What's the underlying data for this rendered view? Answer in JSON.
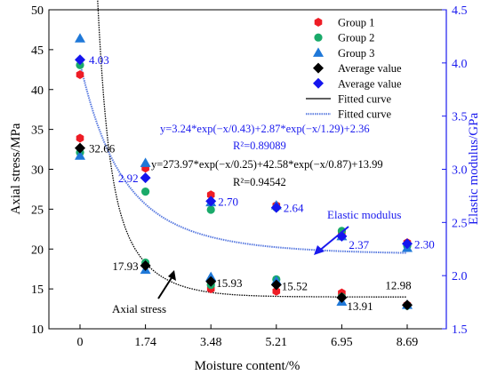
{
  "chart_data": {
    "type": "scatter",
    "xlabel": "Moisture content/%",
    "ylabel_left": "Axial stress/MPa",
    "ylabel_right": "Elastic modulus/GPa",
    "categories": [
      "0",
      "1.74",
      "3.48",
      "5.21",
      "6.95",
      "8.69"
    ],
    "x": [
      0,
      1.74,
      3.48,
      5.21,
      6.95,
      8.69
    ],
    "ylim_left": [
      10,
      50
    ],
    "ylim_right": [
      1.5,
      4.5
    ],
    "yticks_left": [
      "10",
      "15",
      "20",
      "25",
      "30",
      "35",
      "40",
      "45",
      "50"
    ],
    "yticks_right": [
      "1.5",
      "2.0",
      "2.5",
      "3.0",
      "3.5",
      "4.0",
      "4.5"
    ],
    "legend_placement": "top-right",
    "colors": {
      "group1": "#ee1c25",
      "group2": "#1aaa6a",
      "group3": "#1f78d8",
      "average_stress": "#000000",
      "average_modulus": "#1515ee",
      "fit_stress": "#000000",
      "fit_modulus": "#5a7be0",
      "right_axis": "#1a1aee"
    },
    "legend": [
      {
        "label": "Group 1",
        "marker": "hexagon",
        "color": "#ee1c25"
      },
      {
        "label": "Group 2",
        "marker": "circle",
        "color": "#1aaa6a"
      },
      {
        "label": "Group 3",
        "marker": "triangle",
        "color": "#1f78d8"
      },
      {
        "label": "Average value",
        "marker": "diamond",
        "color": "#000000"
      },
      {
        "label": "Average value",
        "marker": "diamond",
        "color": "#1515ee"
      },
      {
        "label": "Fitted curve",
        "marker": "line",
        "color": "#000000"
      },
      {
        "label": "Fitted curve",
        "marker": "dotted",
        "color": "#5a7be0"
      }
    ],
    "stress_series": {
      "group1": [
        33.9,
        18.1,
        15.0,
        14.7,
        14.5,
        13.0
      ],
      "group2": [
        32.1,
        18.3,
        15.5,
        16.2,
        14.0,
        12.9
      ],
      "group3": [
        31.7,
        17.4,
        16.5,
        16.0,
        13.4,
        13.0
      ],
      "average": [
        32.66,
        17.93,
        15.93,
        15.52,
        13.91,
        12.98
      ],
      "average_labels": [
        "32.66",
        "17.93",
        "15.93",
        "15.52",
        "13.91",
        "12.98"
      ]
    },
    "modulus_series": {
      "group1": [
        3.89,
        3.01,
        2.76,
        2.66,
        2.41,
        2.31
      ],
      "group2": [
        3.98,
        2.79,
        2.62,
        2.64,
        2.42,
        2.28
      ],
      "group3": [
        4.23,
        3.06,
        2.69,
        2.66,
        2.37,
        2.26
      ],
      "average": [
        4.03,
        2.92,
        2.7,
        2.64,
        2.37,
        2.3
      ],
      "average_labels": [
        "4.03",
        "2.92",
        "2.70",
        "2.64",
        "2.37",
        "2.30"
      ]
    },
    "fits": {
      "stress": {
        "equation": "y=273.97*exp(−x/0.25)+42.58*exp(−x/0.87)+13.99",
        "r2": "R²=0.94542"
      },
      "modulus": {
        "equation": "y=3.24*exp(−x/0.43)+2.87*exp(−x/1.29)+2.36",
        "r2": "R²=0.89089"
      }
    },
    "annotations": {
      "stress": "Axial stress",
      "modulus": "Elastic modulus"
    }
  }
}
